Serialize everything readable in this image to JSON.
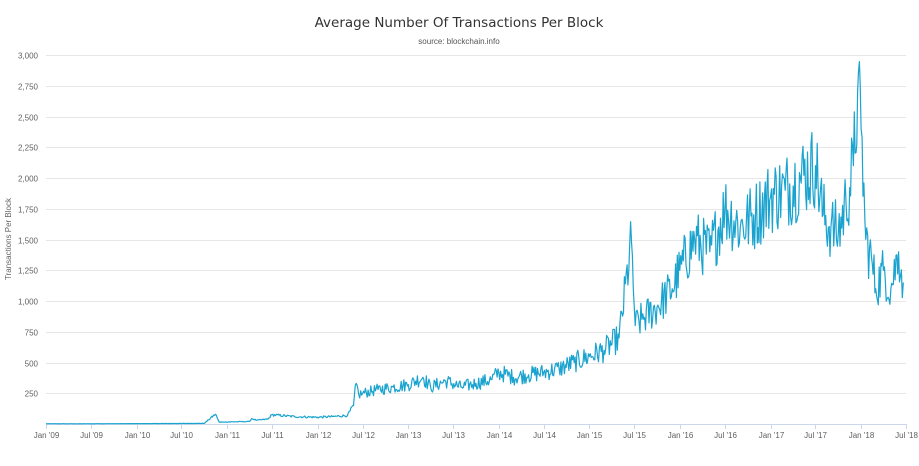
{
  "chart_data": {
    "type": "line",
    "title": "Average Number Of Transactions Per Block",
    "subtitle": "source: blockchain.info",
    "ylabel": "Transactions Per Block",
    "xlabel": "",
    "ylim": [
      0,
      3000
    ],
    "xlim": [
      "2009-01-01",
      "2018-07-01"
    ],
    "y_ticks": [
      250,
      500,
      750,
      1000,
      1250,
      1500,
      1750,
      2000,
      2250,
      2500,
      2750,
      3000
    ],
    "y_tick_labels": [
      "250",
      "500",
      "750",
      "1,000",
      "1,250",
      "1,500",
      "1,750",
      "2,000",
      "2,250",
      "2,500",
      "2,750",
      "3,000"
    ],
    "x_ticks": [
      "2009-01-01",
      "2009-07-01",
      "2010-01-01",
      "2010-07-01",
      "2011-01-01",
      "2011-07-01",
      "2012-01-01",
      "2012-07-01",
      "2013-01-01",
      "2013-07-01",
      "2014-01-01",
      "2014-07-01",
      "2015-01-01",
      "2015-07-01",
      "2016-01-01",
      "2016-07-01",
      "2017-01-01",
      "2017-07-01",
      "2018-01-01",
      "2018-07-01"
    ],
    "x_tick_labels": [
      "Jan '09",
      "Jul '09",
      "Jan '10",
      "Jul '10",
      "Jan '11",
      "Jul '11",
      "Jan '12",
      "Jul '12",
      "Jan '13",
      "Jul '13",
      "Jan '14",
      "Jul '14",
      "Jan '15",
      "Jul '15",
      "Jan '16",
      "Jul '16",
      "Jan '17",
      "Jul '17",
      "Jan '18",
      "Jul '18"
    ],
    "grid": true,
    "legend": "none",
    "line_color": "#1aa3cf",
    "series": [
      {
        "x": [
          "2009-01-01",
          "2009-07-01",
          "2010-01-01",
          "2010-07-01",
          "2010-10-01",
          "2010-11-15",
          "2010-12-01",
          "2011-02-01",
          "2011-04-01",
          "2011-04-10",
          "2011-05-01",
          "2011-06-15",
          "2011-07-01",
          "2011-10-01",
          "2012-01-01",
          "2012-03-01",
          "2012-05-01",
          "2012-05-25",
          "2012-06-05",
          "2012-06-15",
          "2012-07-01",
          "2012-09-01",
          "2012-11-01",
          "2013-01-01",
          "2013-03-01",
          "2013-04-01",
          "2013-06-01",
          "2013-08-01",
          "2013-10-01",
          "2013-12-01",
          "2014-01-01",
          "2014-03-01",
          "2014-05-01",
          "2014-07-01",
          "2014-09-01",
          "2014-11-01",
          "2015-01-01",
          "2015-03-01",
          "2015-05-01",
          "2015-06-20",
          "2015-07-05",
          "2015-08-01",
          "2015-10-01",
          "2015-12-01",
          "2016-01-01",
          "2016-03-01",
          "2016-05-01",
          "2016-07-01",
          "2016-09-01",
          "2016-11-01",
          "2017-01-01",
          "2017-03-01",
          "2017-05-01",
          "2017-07-01",
          "2017-08-01",
          "2017-09-01",
          "2017-10-01",
          "2017-11-01",
          "2017-12-01",
          "2017-12-18",
          "2018-01-01",
          "2018-01-20",
          "2018-02-15",
          "2018-03-01",
          "2018-04-01",
          "2018-05-01",
          "2018-06-01",
          "2018-06-20"
        ],
        "y": [
          2,
          2,
          3,
          4,
          5,
          80,
          15,
          18,
          20,
          45,
          30,
          40,
          75,
          60,
          55,
          60,
          70,
          150,
          330,
          240,
          250,
          280,
          300,
          320,
          380,
          300,
          350,
          300,
          330,
          360,
          420,
          380,
          400,
          420,
          450,
          500,
          550,
          600,
          700,
          1480,
          800,
          850,
          950,
          1100,
          1250,
          1500,
          1400,
          1750,
          1600,
          1700,
          1850,
          1900,
          2000,
          2100,
          1700,
          1600,
          1550,
          1800,
          2100,
          2700,
          2400,
          1500,
          1300,
          1100,
          1250,
          1100,
          1400,
          1150
        ]
      }
    ]
  }
}
